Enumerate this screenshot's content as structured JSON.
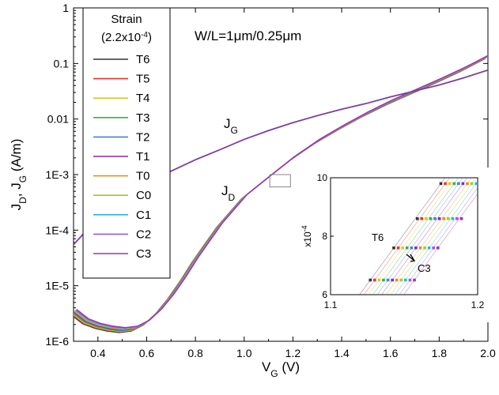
{
  "chart_data": {
    "type": "line",
    "xlabel_main": "V",
    "xlabel_sub": "G",
    "xlabel_unit": " (V)",
    "ylabel_parts": [
      "J",
      "D",
      ", J",
      "G",
      " (A/m)"
    ],
    "xlim": [
      0.3,
      2.0
    ],
    "ylim": [
      1e-06,
      1
    ],
    "yscale": "log",
    "x_ticks": [
      0.4,
      0.6,
      0.8,
      1.0,
      1.2,
      1.4,
      1.6,
      1.8,
      2.0
    ],
    "x_tick_labels": [
      "0.4",
      "0.6",
      "0.8",
      "1.0",
      "1.2",
      "1.4",
      "1.6",
      "1.8",
      "2.0"
    ],
    "y_ticks": [
      1e-06,
      1e-05,
      0.0001,
      0.001,
      0.01,
      0.1,
      1
    ],
    "y_tick_labels": [
      "1E-6",
      "1E-5",
      "1E-4",
      "1E-3",
      "0.01",
      "0.1",
      "1"
    ],
    "annotation_wl": "W/L=1μm/0.25μm",
    "label_jg_main": "J",
    "label_jg_sub": "G",
    "label_jd_main": "J",
    "label_jd_sub": "D",
    "legend": {
      "title_line1": "Strain",
      "title_line2_prefix": "(2.2x10",
      "title_line2_exp": "-4",
      "title_line2_suffix": ")",
      "entries": [
        {
          "name": "T6",
          "color": "#333333"
        },
        {
          "name": "T5",
          "color": "#e8342b"
        },
        {
          "name": "T4",
          "color": "#e6c21e"
        },
        {
          "name": "T3",
          "color": "#34b24a"
        },
        {
          "name": "T2",
          "color": "#4a7fd6"
        },
        {
          "name": "T1",
          "color": "#7b2fa8"
        },
        {
          "name": "T0",
          "color": "#e88a2b"
        },
        {
          "name": "C0",
          "color": "#a8c81e"
        },
        {
          "name": "C1",
          "color": "#2bb8d6"
        },
        {
          "name": "C2",
          "color": "#9b5ae0"
        },
        {
          "name": "C3",
          "color": "#a22fb8"
        }
      ]
    },
    "series_jg": {
      "color": "#7a3fa8",
      "x": [
        0.3,
        0.35,
        0.4,
        0.45,
        0.5,
        0.6,
        0.7,
        0.8,
        0.9,
        1.0,
        1.1,
        1.2,
        1.3,
        1.4,
        1.5,
        1.6,
        1.7,
        1.8,
        1.9,
        2.0
      ],
      "y": [
        5.5e-05,
        9.5e-05,
        0.00015,
        0.000225,
        0.00033,
        0.00065,
        0.00115,
        0.00185,
        0.0028,
        0.0043,
        0.0062,
        0.0086,
        0.0115,
        0.015,
        0.019,
        0.025,
        0.032,
        0.041,
        0.055,
        0.076
      ]
    },
    "series_jd": {
      "x": [
        0.3,
        0.35,
        0.4,
        0.45,
        0.5,
        0.55,
        0.6,
        0.65,
        0.7,
        0.75,
        0.8,
        0.9,
        1.0,
        1.1,
        1.2,
        1.3,
        1.4,
        1.5,
        1.6,
        1.7,
        1.8,
        1.9,
        2.0
      ],
      "y": [
        3.4e-06,
        2.3e-06,
        1.9e-06,
        1.7e-06,
        1.6e-06,
        1.7e-06,
        2.2e-06,
        3.5e-06,
        6.5e-06,
        1.35e-05,
        3e-05,
        0.000125,
        0.0004,
        0.0009,
        0.002,
        0.004,
        0.0072,
        0.0125,
        0.0205,
        0.032,
        0.05,
        0.08,
        0.135
      ]
    },
    "zoom_box": {
      "x": [
        1.105,
        1.19
      ],
      "y": [
        0.0006,
        0.001
      ]
    },
    "inset": {
      "xlim": [
        1.1,
        1.2
      ],
      "ylim": [
        6,
        10
      ],
      "x_tick_labels": [
        "1.1",
        "1.2"
      ],
      "y_tick_labels": [
        "6",
        "8",
        "10"
      ],
      "ylabel_prefix": "x10",
      "ylabel_exp": "-4",
      "label_t6": "T6",
      "label_c3": "C3",
      "marker_x_offsets": [
        0.0,
        0.003,
        0.006,
        0.009,
        0.012,
        0.015,
        0.018,
        0.021,
        0.024,
        0.027,
        0.03
      ],
      "base_x": [
        1.127,
        1.143,
        1.159,
        1.175
      ],
      "base_y": [
        6.5,
        7.6,
        8.6,
        9.8
      ]
    }
  }
}
